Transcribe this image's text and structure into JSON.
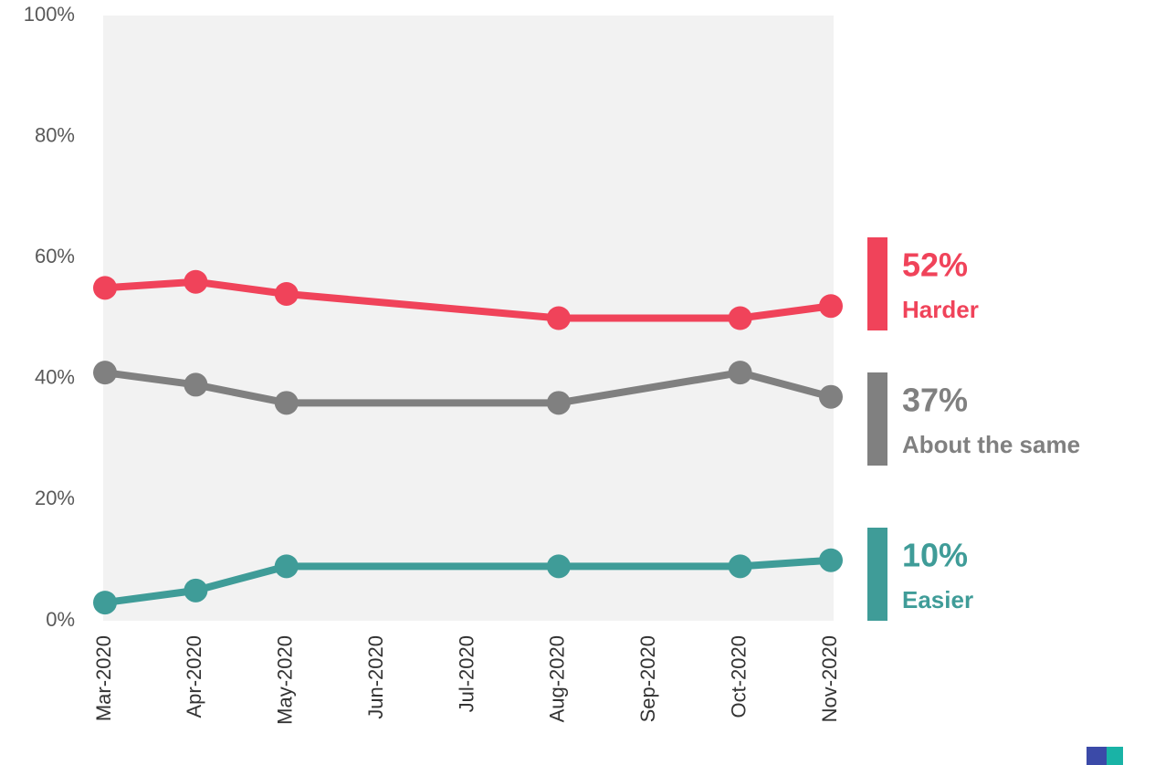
{
  "chart_data": {
    "type": "line",
    "x": [
      "2020-03",
      "2020-04",
      "2020-05",
      "2020-08",
      "2020-10",
      "2020-11"
    ],
    "xlim": [
      "2020-03",
      "2020-11"
    ],
    "xticks": [
      {
        "value": "2020-03",
        "label": "Mar-2020"
      },
      {
        "value": "2020-04",
        "label": "Apr-2020"
      },
      {
        "value": "2020-05",
        "label": "May-2020"
      },
      {
        "value": "2020-06",
        "label": "Jun-2020"
      },
      {
        "value": "2020-07",
        "label": "Jul-2020"
      },
      {
        "value": "2020-08",
        "label": "Aug-2020"
      },
      {
        "value": "2020-09",
        "label": "Sep-2020"
      },
      {
        "value": "2020-10",
        "label": "Oct-2020"
      },
      {
        "value": "2020-11",
        "label": "Nov-2020"
      }
    ],
    "ylim": [
      0,
      100
    ],
    "yticks": [
      {
        "value": 0,
        "label": "0%"
      },
      {
        "value": 20,
        "label": "20%"
      },
      {
        "value": 40,
        "label": "40%"
      },
      {
        "value": 60,
        "label": "60%"
      },
      {
        "value": 80,
        "label": "80%"
      },
      {
        "value": 100,
        "label": "100%"
      }
    ],
    "grid": false,
    "series": [
      {
        "name": "Harder",
        "color": "#f0435a",
        "values": [
          55,
          56,
          54,
          50,
          50,
          52
        ],
        "value_labels": [
          null,
          null,
          null,
          null,
          null,
          "52%"
        ]
      },
      {
        "name": "About the same",
        "color": "#808080",
        "values": [
          41,
          39,
          36,
          36,
          41,
          37
        ],
        "value_labels": [
          null,
          null,
          null,
          null,
          null,
          "37%"
        ]
      },
      {
        "name": "Easier",
        "color": "#3f9c98",
        "values": [
          3,
          5,
          9,
          9,
          9,
          10
        ],
        "value_labels": [
          null,
          null,
          null,
          null,
          null,
          "10%"
        ]
      }
    ]
  }
}
